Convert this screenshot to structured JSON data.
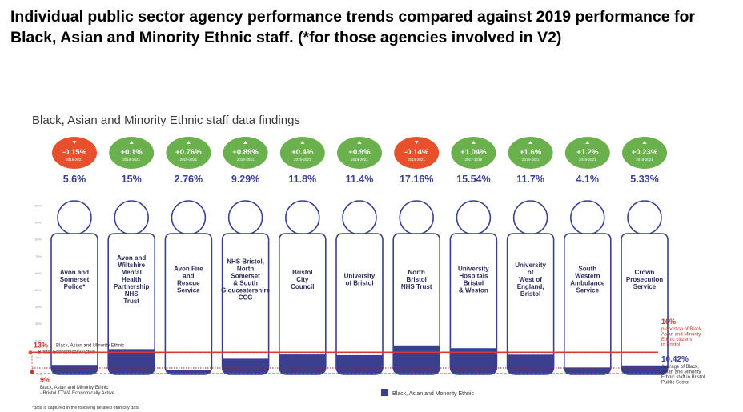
{
  "page_title": "Individual public sector agency performance trends compared against  2019 performance for Black, Asian and Minority Ethnic staff.  (*for those agencies involved in V2)",
  "chart_data": {
    "type": "bar",
    "title": "Black, Asian and Minority Ethnic staff data findings",
    "categories": [
      "Avon and Somerset Police*",
      "Avon and Wiltshire Mental Health Partnership NHS Trust",
      "Avon Fire and Rescue Service",
      "NHS Bristol, North Somerset & South Gloucestershire CCG",
      "Bristol City Council",
      "University of Bristol",
      "North Bristol NHS Trust",
      "University Hospitals Bristol & Weston",
      "University of West of England, Bristol",
      "South Western Ambulance Service",
      "Crown Prosecution Service"
    ],
    "category_lines": [
      [
        "Avon and",
        "Somerset",
        "Police*"
      ],
      [
        "Avon and",
        "Wiltshire",
        "Mental",
        "Health",
        "Partnership",
        "NHS",
        "Trust"
      ],
      [
        "Avon Fire",
        "and",
        "Rescue",
        "Service"
      ],
      [
        "NHS Bristol,",
        "North",
        "Somerset",
        "& South",
        "Gloucestershire",
        "CCG"
      ],
      [
        "Bristol",
        "City",
        "Council"
      ],
      [
        "University",
        "of Bristol"
      ],
      [
        "North",
        "Bristol",
        "NHS Trust"
      ],
      [
        "University",
        "Hospitals",
        "Bristol",
        "& Weston"
      ],
      [
        "University",
        "of",
        "West of",
        "England,",
        "Bristol"
      ],
      [
        "South",
        "Western",
        "Ambulance",
        "Service"
      ],
      [
        "Crown",
        "Prosecution",
        "Service"
      ]
    ],
    "series": [
      {
        "name": "Black, Asian and Monority Ethnic",
        "values": [
          5.6,
          15,
          2.76,
          9.29,
          11.8,
          11.4,
          17.16,
          15.54,
          11.7,
          4.1,
          5.33
        ]
      }
    ],
    "value_labels": [
      "5.6%",
      "15%",
      "2.76%",
      "9.29%",
      "11.8%",
      "11.4%",
      "17.16%",
      "15.54%",
      "11.7%",
      "4.1%",
      "5.33%"
    ],
    "changes": [
      "-0.15%",
      "+0.1%",
      "+0.76%",
      "+0.89%",
      "+0.4%",
      "+0.9%",
      "-0.14%",
      "+1.04%",
      "+1.6%",
      "+1.2%",
      "+0.23%"
    ],
    "change_direction": [
      "down",
      "up",
      "up",
      "up",
      "up",
      "up",
      "down",
      "up",
      "up",
      "up",
      "up"
    ],
    "change_periods": [
      "2019-2021",
      "2019-2021",
      "2019-2021",
      "2019-2021",
      "2019-2021",
      "2019-2021",
      "2019-2021",
      "2017-2019",
      "2019-2021",
      "2019-2021",
      "2019-2021"
    ],
    "colors": {
      "up": "#6ab04c",
      "down": "#e8502b",
      "bar": "#3a3f8f",
      "bar_light": "#c9c9e6",
      "ref_line": "#d83a3a"
    },
    "ylim": [
      0,
      100
    ],
    "reference_lines": [
      {
        "value": 13,
        "label": "13%",
        "text": "Black, Asian and Minority Ethnic - Bristol Economically Active",
        "color": "#e8502b"
      },
      {
        "value": 9,
        "label": "9%",
        "text": "Black, Asian and Minority Ethnic - Bristol TTWA Economically Active",
        "color": "#c0392b"
      },
      {
        "value": 16,
        "label": "16%",
        "text": "proportion of Black, Asian and Minority Ethnic citizens in Bristol",
        "color": "#e8502b"
      },
      {
        "value": 10.42,
        "label": "10.42%",
        "text": "Average of Black, Asian and Minority Ethnic staff in Bristol Public Sector",
        "color": "#3a3f8f"
      }
    ],
    "legend_label": "Black, Asian and Monority Ethnic",
    "footnote": "*data is captured in the following detailed ethnicity data"
  }
}
